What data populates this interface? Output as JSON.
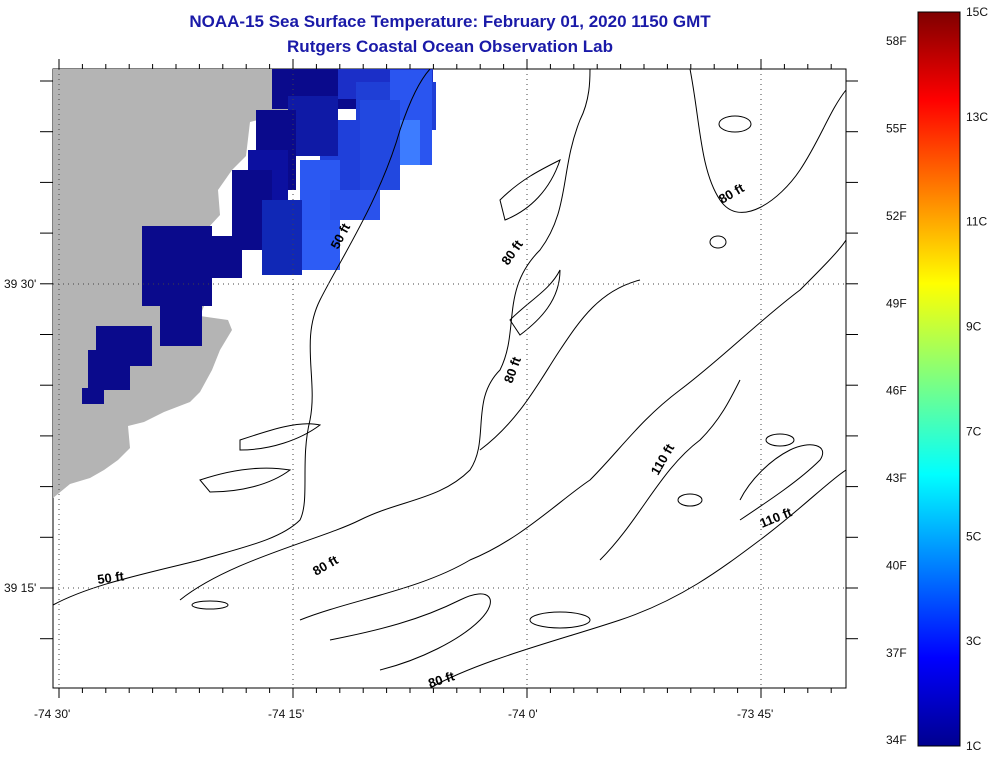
{
  "title": {
    "line1": "NOAA-15 Sea Surface Temperature:  February 01, 2020 1150 GMT",
    "line2": "Rutgers Coastal Ocean Observation Lab"
  },
  "map": {
    "lon_labels": [
      "-74 30'",
      "-74 15'",
      "-74 0'",
      "-73 45'"
    ],
    "lat_labels": [
      "39 30'",
      "39 15'"
    ],
    "contour_labels": [
      "50 ft",
      "80 ft",
      "80 ft",
      "80 ft",
      "110 ft",
      "110 ft",
      "50 ft",
      "80 ft",
      "80 ft"
    ],
    "colors": {
      "land": "#b4b4b4",
      "sst_dark": "#0a0a8c",
      "sst_mid": "#1f3fd6",
      "sst_light": "#3d7cff"
    }
  },
  "colorbar": {
    "celsius_labels": [
      "15C",
      "13C",
      "11C",
      "9C",
      "7C",
      "5C",
      "3C",
      "1C"
    ],
    "fahrenheit_labels": [
      "58F",
      "55F",
      "52F",
      "49F",
      "46F",
      "43F",
      "40F",
      "37F",
      "34F"
    ],
    "range_c": [
      1,
      15
    ],
    "colormap": "jet"
  }
}
